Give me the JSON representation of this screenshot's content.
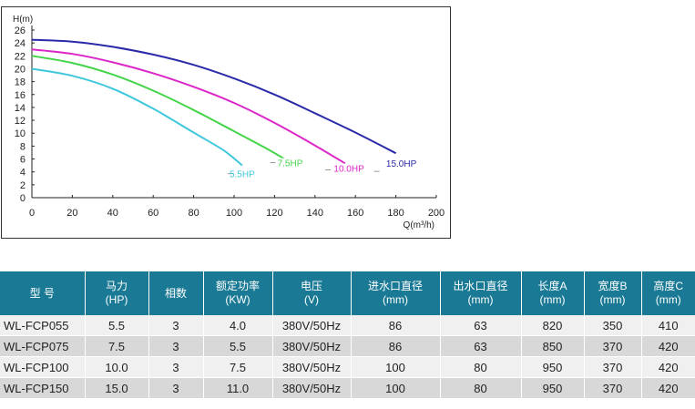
{
  "chart_data": {
    "type": "line",
    "ylabel": "H(m)",
    "xlabel": "Q(m³/h)",
    "xlim": [
      0,
      200
    ],
    "ylim": [
      0,
      26
    ],
    "x_ticks": [
      "0",
      "20",
      "40",
      "60",
      "80",
      "100",
      "120",
      "140",
      "160",
      "180",
      "200"
    ],
    "y_ticks": [
      "0",
      "2",
      "4",
      "6",
      "8",
      "10",
      "12",
      "14",
      "16",
      "18",
      "20",
      "22",
      "24",
      "26"
    ],
    "grid": false,
    "series": [
      {
        "name": "5.5HP",
        "color": "#3fc8dc",
        "x": [
          0,
          20,
          40,
          60,
          80,
          95,
          104
        ],
        "y": [
          20.0,
          18.9,
          16.9,
          13.8,
          10.1,
          7.3,
          5.0
        ]
      },
      {
        "name": "7.5HP",
        "color": "#44d44a",
        "x": [
          0,
          20,
          40,
          60,
          80,
          100,
          115,
          125
        ],
        "y": [
          22.0,
          20.9,
          19.1,
          16.6,
          13.6,
          10.3,
          7.8,
          6.0
        ]
      },
      {
        "name": "10.0HP",
        "color": "#dc26c8",
        "x": [
          0,
          20,
          40,
          60,
          80,
          100,
          120,
          140,
          155
        ],
        "y": [
          23.0,
          22.3,
          21.0,
          19.3,
          17.2,
          14.7,
          11.6,
          8.1,
          5.3
        ]
      },
      {
        "name": "15.0HP",
        "color": "#2a2aa8",
        "x": [
          0,
          20,
          40,
          60,
          80,
          100,
          120,
          140,
          160,
          180
        ],
        "y": [
          24.5,
          24.2,
          23.4,
          22.2,
          20.6,
          18.5,
          16.0,
          13.1,
          10.1,
          6.9
        ]
      }
    ]
  },
  "table": {
    "headers": [
      [
        "型  号"
      ],
      [
        "马力",
        "(HP)"
      ],
      [
        "相数"
      ],
      [
        "额定功率",
        "(KW)"
      ],
      [
        "电压",
        "(V)"
      ],
      [
        "进水口直径",
        "(mm)"
      ],
      [
        "出水口直径",
        "(mm)"
      ],
      [
        "长度A",
        "(mm)"
      ],
      [
        "宽度B",
        "(mm)"
      ],
      [
        "高度C",
        "(mm)"
      ]
    ],
    "rows": [
      [
        "WL-FCP055",
        "5.5",
        "3",
        "4.0",
        "380V/50Hz",
        "86",
        "63",
        "820",
        "350",
        "410"
      ],
      [
        "WL-FCP075",
        "7.5",
        "3",
        "5.5",
        "380V/50Hz",
        "86",
        "63",
        "850",
        "370",
        "420"
      ],
      [
        "WL-FCP100",
        "10.0",
        "3",
        "7.5",
        "380V/50Hz",
        "100",
        "80",
        "950",
        "370",
        "420"
      ],
      [
        "WL-FCP150",
        "15.0",
        "3",
        "11.0",
        "380V/50Hz",
        "100",
        "80",
        "950",
        "370",
        "420"
      ]
    ]
  }
}
